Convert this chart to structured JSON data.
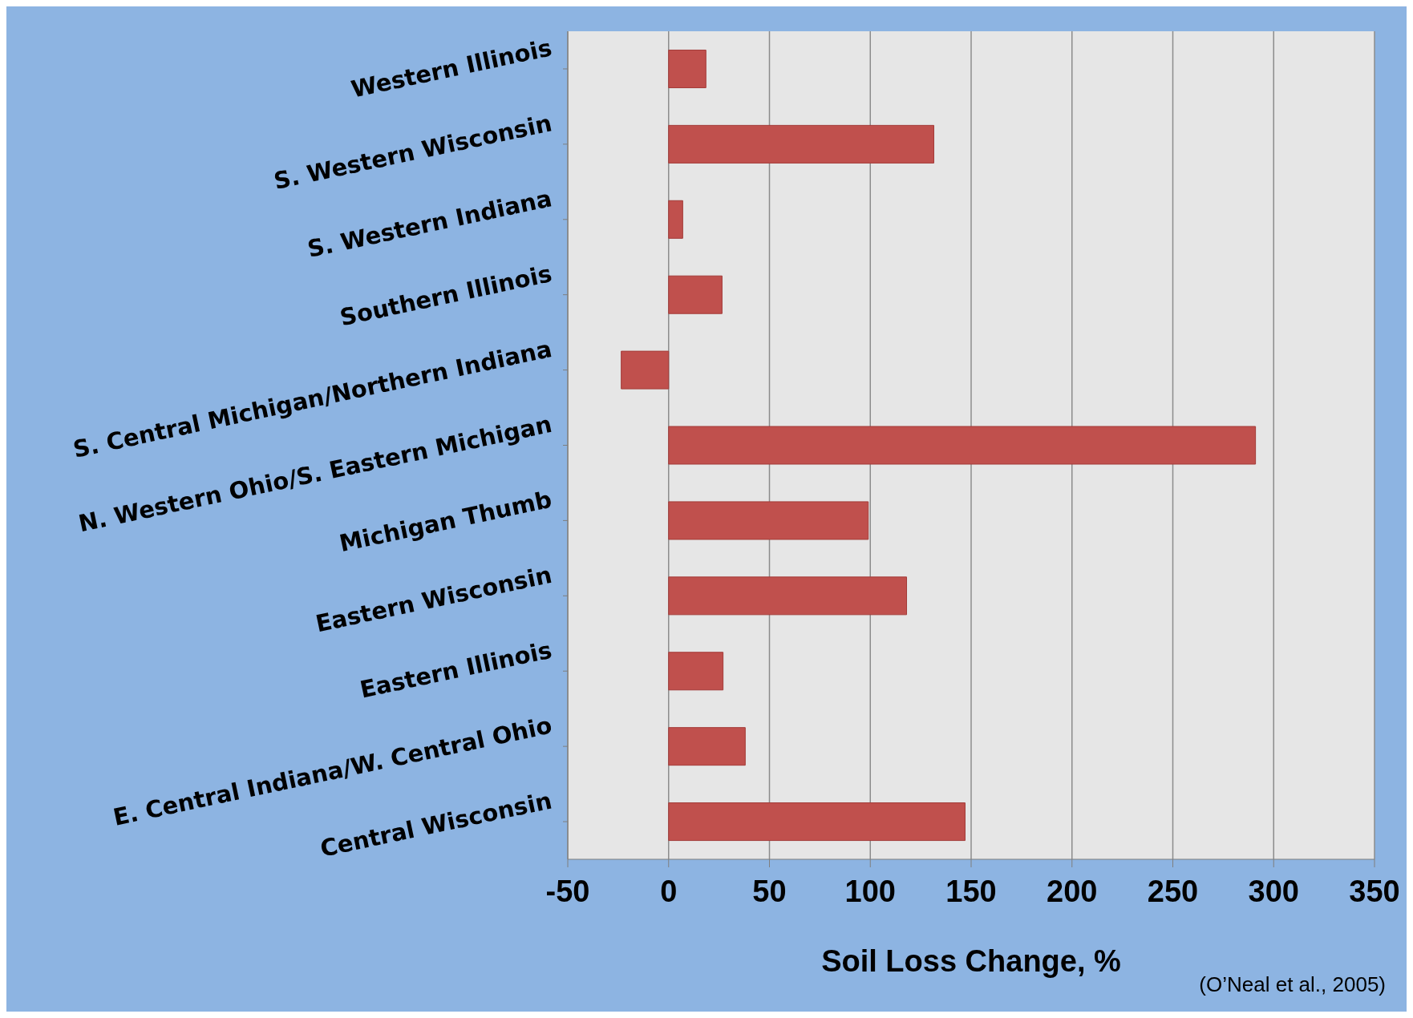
{
  "chart_data": {
    "type": "bar",
    "orientation": "horizontal",
    "xlabel": "Soil Loss Change, %",
    "categories": [
      "Western Illinois",
      "S. Western Wisconsin",
      "S. Western Indiana",
      "Southern Illinois",
      "S. Central Michigan/Northern Indiana",
      "N. Western Ohio/S. Eastern Michigan",
      "Michigan Thumb",
      "Eastern Wisconsin",
      "Eastern Illinois",
      "E. Central Indiana/W. Central Ohio",
      "Central Wisconsin"
    ],
    "values": [
      18.5,
      131.5,
      7,
      26.5,
      -23.5,
      291,
      99,
      118,
      27,
      38,
      147
    ],
    "color": "#c0504d",
    "xlim": [
      -50,
      350
    ],
    "xticks": [
      -50,
      0,
      50,
      100,
      150,
      200,
      250,
      300,
      350
    ],
    "grid": "x",
    "annotations": [
      "(O’Neal et al., 2005)"
    ]
  }
}
